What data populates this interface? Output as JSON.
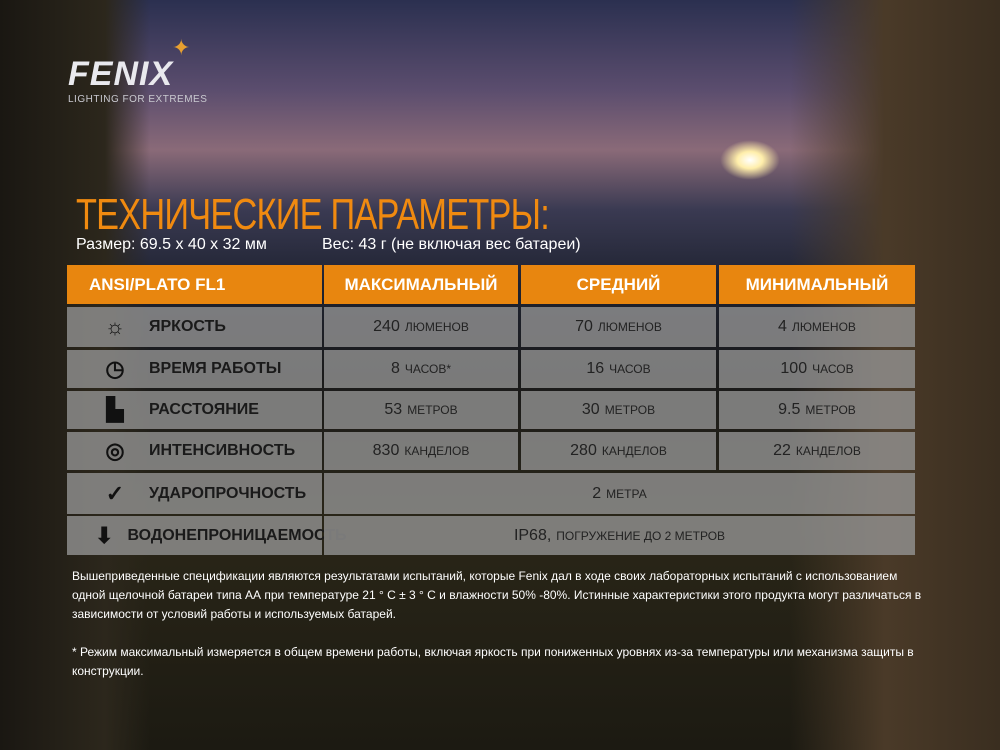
{
  "brand": {
    "name": "FENIX",
    "tagline": "LIGHTING FOR EXTREMES"
  },
  "title": "ТЕХНИЧЕСКИЕ ПАРАМЕТРЫ:",
  "size": "Размер: 69.5 x 40 x 32 мм",
  "weight": "Вес: 43 г (не включая вес батареи)",
  "table": {
    "headers": [
      "ANSI/PLATO FL1",
      "МАКСИМАЛЬНЫЙ",
      "СРЕДНИЙ",
      "МИНИМАЛЬНЫЙ"
    ],
    "rows": [
      {
        "icon": "sun-icon",
        "label": "ЯРКОСТЬ",
        "values": [
          {
            "v": "240",
            "u": "люменов"
          },
          {
            "v": "70",
            "u": "люменов"
          },
          {
            "v": "4",
            "u": "люменов"
          }
        ]
      },
      {
        "icon": "clock-icon",
        "label": "ВРЕМЯ РАБОТЫ",
        "values": [
          {
            "v": "8",
            "u": "часов*"
          },
          {
            "v": "16",
            "u": "часов"
          },
          {
            "v": "100",
            "u": "часов"
          }
        ]
      },
      {
        "icon": "beam-distance-icon",
        "label": "РАССТОЯНИЕ",
        "values": [
          {
            "v": "53",
            "u": "метров"
          },
          {
            "v": "30",
            "u": "метров"
          },
          {
            "v": "9.5",
            "u": "метров"
          }
        ]
      },
      {
        "icon": "target-intensity-icon",
        "label": "ИНТЕНСИВНОСТЬ",
        "values": [
          {
            "v": "830",
            "u": "канделов"
          },
          {
            "v": "280",
            "u": "канделов"
          },
          {
            "v": "22",
            "u": "канделов"
          }
        ]
      },
      {
        "icon": "impact-icon",
        "label": "УДАРОПРОЧНОСТЬ",
        "span": {
          "v": "2",
          "u": "метра"
        }
      },
      {
        "icon": "water-icon",
        "label": "ВОДОНЕПРОНИЦАЕМОСТЬ",
        "span": {
          "v": "IP68,",
          "u": "погружение до 2 метров"
        }
      }
    ]
  },
  "notes": [
    "Вышеприведенные спецификации являются результатами испытаний, которые Fenix дал в ходе своих лабораторных испытаний с использованием одной щелочной батареи типа АА при температуре 21 ° C ± 3 ° C и влажности 50% -80%. Истинные характеристики этого продукта могут различаться в зависимости от условий работы и используемых батарей.",
    "* Режим максимальный измеряется в общем времени работы, включая яркость при пониженных уровнях из-за температуры или механизма защиты в конструкции."
  ],
  "colors": {
    "accent": "#e8860f",
    "row": "#969696"
  }
}
